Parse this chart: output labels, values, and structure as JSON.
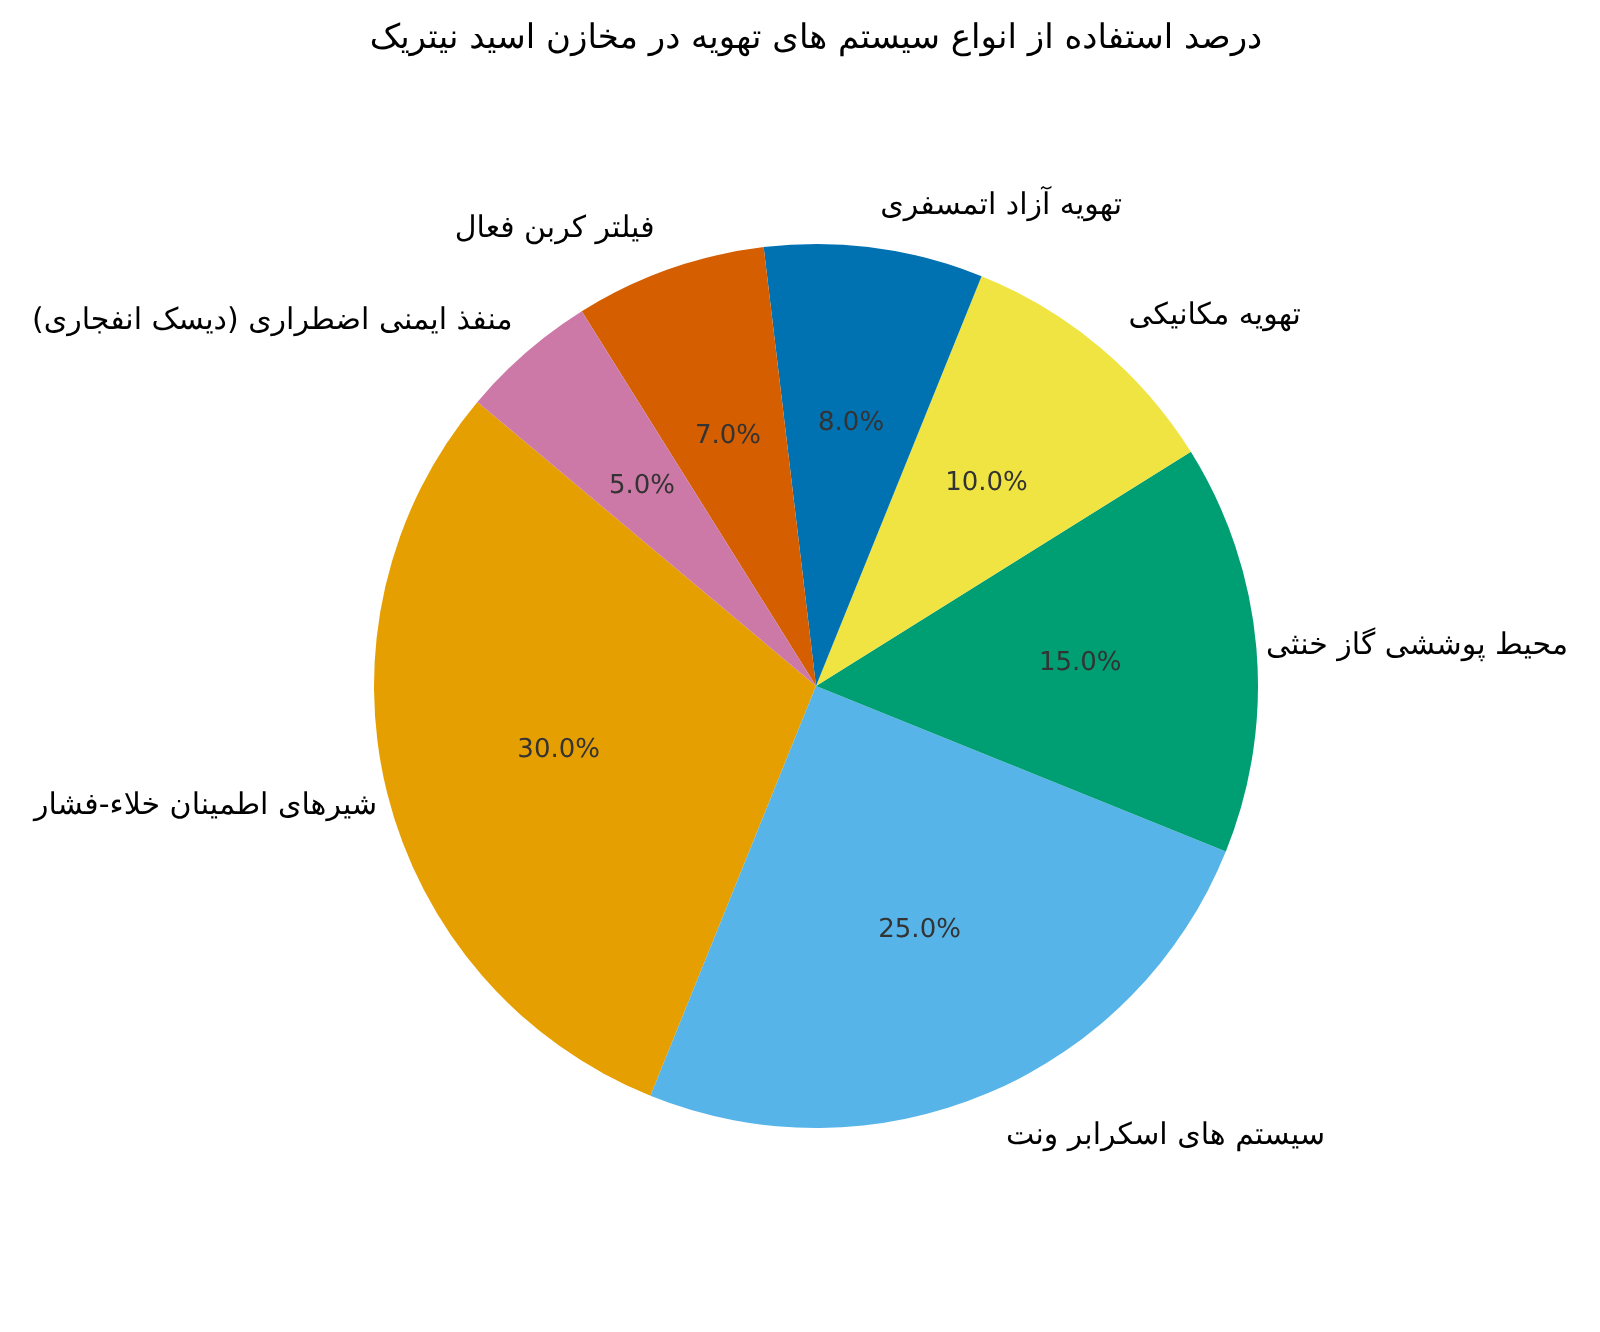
{
  "chart_data": {
    "type": "pie",
    "title": "درصد استفاده از انواع سیستم های تهویه در مخازن اسید نیتریک",
    "categories": [
      "شیرهای اطمینان خلاء-فشار",
      "سیستم های اسکرابر ونت",
      "محیط پوششی گاز خنثی",
      "تهویه مکانیکی",
      "تهویه آزاد اتمسفری",
      "فیلتر کربن فعال",
      "منفذ ایمنی اضطراری (دیسک انفجاری)"
    ],
    "values": [
      30,
      25,
      15,
      10,
      8,
      7,
      5
    ],
    "colors": [
      "#e69f00",
      "#56b4e9",
      "#009e73",
      "#f0e442",
      "#0072b2",
      "#d55e00",
      "#cc79a7"
    ],
    "value_labels": [
      "30.0%",
      "25.0%",
      "15.0%",
      "10.0%",
      "8.0%",
      "7.0%",
      "5.0%"
    ]
  }
}
